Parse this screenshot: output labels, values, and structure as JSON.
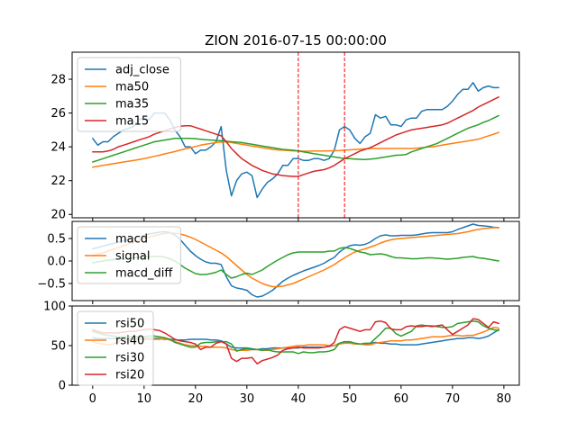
{
  "colors": {
    "blue": "#1f77b4",
    "orange": "#ff7f0e",
    "green": "#2ca02c",
    "red": "#d62728",
    "marker": "#ff0000"
  },
  "chart_data": {
    "type": "line",
    "title": "ZION 2016-07-15 00:00:00",
    "x": {
      "min": 0,
      "max": 79,
      "xlim": [
        -4,
        83
      ],
      "ticks": [
        0,
        10,
        20,
        30,
        40,
        50,
        60,
        70,
        80
      ]
    },
    "vertical_markers": [
      40,
      49
    ],
    "legend_position": "upper left",
    "panels": [
      {
        "id": "price",
        "ylim": [
          19.8,
          29.6
        ],
        "yticks": [
          20,
          22,
          24,
          26,
          28
        ],
        "series": [
          {
            "name": "adj_close",
            "color": "blue",
            "values": [
              24.5,
              24.1,
              24.3,
              24.3,
              24.6,
              24.8,
              25.0,
              25.1,
              25.2,
              25.6,
              25.7,
              25.6,
              26.0,
              26.0,
              26.0,
              25.6,
              25.0,
              24.6,
              24.0,
              24.0,
              23.6,
              23.8,
              23.8,
              24.0,
              24.3,
              25.2,
              22.6,
              21.1,
              22.0,
              22.4,
              22.5,
              22.3,
              21.0,
              21.5,
              21.9,
              22.1,
              22.4,
              22.9,
              22.9,
              23.3,
              23.3,
              23.2,
              23.2,
              23.3,
              23.3,
              23.2,
              23.3,
              23.8,
              25.0,
              25.2,
              25.0,
              24.5,
              24.2,
              24.6,
              24.8,
              25.9,
              25.7,
              25.8,
              25.3,
              25.3,
              25.2,
              25.6,
              25.7,
              25.7,
              26.1,
              26.2,
              26.2,
              26.2,
              26.2,
              26.4,
              26.7,
              27.1,
              27.4,
              27.4,
              27.8,
              27.3,
              27.5,
              27.6,
              27.5,
              27.5
            ]
          },
          {
            "name": "ma50",
            "color": "orange",
            "values": [
              22.8,
              22.85,
              22.9,
              22.95,
              23.0,
              23.05,
              23.1,
              23.15,
              23.2,
              23.25,
              23.3,
              23.37,
              23.44,
              23.5,
              23.58,
              23.65,
              23.72,
              23.8,
              23.88,
              23.95,
              24.02,
              24.1,
              24.15,
              24.2,
              24.25,
              24.28,
              24.3,
              24.25,
              24.2,
              24.15,
              24.1,
              24.05,
              24.0,
              23.95,
              23.9,
              23.85,
              23.82,
              23.8,
              23.78,
              23.76,
              23.75,
              23.74,
              23.74,
              23.75,
              23.75,
              23.75,
              23.76,
              23.77,
              23.78,
              23.8,
              23.82,
              23.84,
              23.86,
              23.88,
              23.9,
              23.9,
              23.9,
              23.9,
              23.9,
              23.9,
              23.9,
              23.9,
              23.9,
              23.92,
              23.95,
              23.98,
              24.0,
              24.05,
              24.1,
              24.15,
              24.2,
              24.25,
              24.3,
              24.35,
              24.4,
              24.45,
              24.55,
              24.65,
              24.75,
              24.85
            ]
          },
          {
            "name": "ma35",
            "color": "green",
            "values": [
              23.1,
              23.2,
              23.3,
              23.4,
              23.5,
              23.6,
              23.7,
              23.8,
              23.9,
              24.0,
              24.1,
              24.2,
              24.3,
              24.35,
              24.4,
              24.45,
              24.5,
              24.5,
              24.5,
              24.5,
              24.48,
              24.45,
              24.42,
              24.4,
              24.38,
              24.36,
              24.33,
              24.3,
              24.28,
              24.25,
              24.2,
              24.15,
              24.1,
              24.05,
              24.0,
              23.95,
              23.9,
              23.85,
              23.82,
              23.8,
              23.75,
              23.7,
              23.65,
              23.6,
              23.55,
              23.5,
              23.45,
              23.4,
              23.35,
              23.3,
              23.3,
              23.28,
              23.26,
              23.25,
              23.27,
              23.3,
              23.35,
              23.4,
              23.45,
              23.5,
              23.52,
              23.55,
              23.7,
              23.8,
              23.9,
              24.0,
              24.1,
              24.2,
              24.35,
              24.5,
              24.65,
              24.8,
              24.95,
              25.1,
              25.2,
              25.3,
              25.45,
              25.55,
              25.7,
              25.85
            ]
          },
          {
            "name": "ma15",
            "color": "red",
            "values": [
              23.7,
              23.7,
              23.7,
              23.75,
              23.85,
              24.0,
              24.1,
              24.2,
              24.3,
              24.4,
              24.5,
              24.6,
              24.75,
              24.85,
              24.95,
              25.05,
              25.15,
              25.22,
              25.25,
              25.25,
              25.15,
              25.05,
              24.95,
              24.85,
              24.75,
              24.65,
              24.3,
              23.9,
              23.6,
              23.3,
              23.1,
              22.9,
              22.75,
              22.6,
              22.5,
              22.4,
              22.35,
              22.3,
              22.27,
              22.25,
              22.25,
              22.35,
              22.45,
              22.55,
              22.6,
              22.65,
              22.75,
              22.9,
              23.1,
              23.3,
              23.45,
              23.6,
              23.75,
              23.85,
              23.95,
              24.1,
              24.25,
              24.4,
              24.55,
              24.7,
              24.8,
              24.9,
              25.0,
              25.05,
              25.1,
              25.15,
              25.2,
              25.25,
              25.3,
              25.4,
              25.55,
              25.7,
              25.85,
              26.0,
              26.15,
              26.35,
              26.5,
              26.65,
              26.8,
              26.95
            ]
          }
        ]
      },
      {
        "id": "macd",
        "ylim": [
          -0.88,
          0.88
        ],
        "yticks": [
          -0.5,
          0.0,
          0.5
        ],
        "ytick_labels": [
          "−0.5",
          "0.0",
          "0.5"
        ],
        "series": [
          {
            "name": "macd",
            "color": "blue",
            "values": [
              0.27,
              0.3,
              0.33,
              0.36,
              0.39,
              0.42,
              0.45,
              0.48,
              0.51,
              0.54,
              0.57,
              0.6,
              0.62,
              0.64,
              0.65,
              0.63,
              0.58,
              0.48,
              0.35,
              0.22,
              0.12,
              0.04,
              -0.02,
              -0.05,
              -0.05,
              -0.08,
              -0.35,
              -0.55,
              -0.6,
              -0.62,
              -0.65,
              -0.75,
              -0.8,
              -0.78,
              -0.72,
              -0.65,
              -0.55,
              -0.45,
              -0.38,
              -0.32,
              -0.27,
              -0.22,
              -0.18,
              -0.14,
              -0.1,
              -0.05,
              0.02,
              0.08,
              0.2,
              0.28,
              0.34,
              0.36,
              0.35,
              0.37,
              0.42,
              0.5,
              0.56,
              0.58,
              0.56,
              0.56,
              0.57,
              0.57,
              0.57,
              0.58,
              0.6,
              0.62,
              0.63,
              0.63,
              0.63,
              0.63,
              0.65,
              0.7,
              0.74,
              0.78,
              0.82,
              0.79,
              0.78,
              0.77,
              0.75,
              0.74
            ]
          },
          {
            "name": "signal",
            "color": "orange",
            "values": [
              0.12,
              0.15,
              0.18,
              0.22,
              0.26,
              0.3,
              0.34,
              0.38,
              0.42,
              0.46,
              0.5,
              0.53,
              0.56,
              0.59,
              0.61,
              0.62,
              0.62,
              0.6,
              0.57,
              0.53,
              0.48,
              0.42,
              0.36,
              0.3,
              0.24,
              0.18,
              0.1,
              0.0,
              -0.1,
              -0.2,
              -0.3,
              -0.38,
              -0.44,
              -0.5,
              -0.54,
              -0.57,
              -0.57,
              -0.56,
              -0.53,
              -0.5,
              -0.45,
              -0.4,
              -0.35,
              -0.3,
              -0.25,
              -0.2,
              -0.14,
              -0.08,
              0.0,
              0.07,
              0.14,
              0.2,
              0.24,
              0.27,
              0.31,
              0.35,
              0.4,
              0.44,
              0.47,
              0.49,
              0.5,
              0.51,
              0.52,
              0.53,
              0.54,
              0.55,
              0.56,
              0.57,
              0.58,
              0.59,
              0.6,
              0.61,
              0.63,
              0.65,
              0.68,
              0.7,
              0.72,
              0.73,
              0.74,
              0.74
            ]
          },
          {
            "name": "macd_diff",
            "color": "green",
            "values": [
              -0.04,
              -0.02,
              0.0,
              0.02,
              0.03,
              0.04,
              0.05,
              0.06,
              0.07,
              0.08,
              0.09,
              0.1,
              0.1,
              0.1,
              0.09,
              0.05,
              0.0,
              -0.08,
              -0.16,
              -0.22,
              -0.28,
              -0.3,
              -0.3,
              -0.28,
              -0.25,
              -0.2,
              -0.3,
              -0.38,
              -0.35,
              -0.3,
              -0.27,
              -0.3,
              -0.25,
              -0.2,
              -0.12,
              -0.05,
              0.02,
              0.08,
              0.14,
              0.18,
              0.2,
              0.2,
              0.2,
              0.2,
              0.2,
              0.2,
              0.22,
              0.22,
              0.28,
              0.3,
              0.28,
              0.24,
              0.2,
              0.18,
              0.14,
              0.15,
              0.16,
              0.14,
              0.1,
              0.07,
              0.07,
              0.06,
              0.05,
              0.05,
              0.06,
              0.07,
              0.07,
              0.06,
              0.05,
              0.04,
              0.05,
              0.06,
              0.08,
              0.09,
              0.1,
              0.07,
              0.06,
              0.04,
              0.02,
              0.0
            ]
          }
        ]
      },
      {
        "id": "rsi",
        "ylim": [
          0,
          100
        ],
        "yticks": [
          0,
          50,
          100
        ],
        "series": [
          {
            "name": "rsi50",
            "color": "blue",
            "values": [
              60,
              59,
              59,
              59,
              59,
              59,
              59,
              59,
              59,
              59,
              59,
              59,
              59,
              59,
              58,
              58,
              57,
              57,
              57,
              58,
              58,
              58,
              58,
              57,
              57,
              56,
              52,
              48,
              47,
              47,
              47,
              46,
              45,
              46,
              46,
              47,
              47,
              47,
              47,
              47,
              47,
              48,
              48,
              48,
              48,
              48,
              49,
              50,
              53,
              54,
              54,
              53,
              52,
              52,
              53,
              54,
              53,
              53,
              52,
              52,
              51,
              51,
              51,
              51,
              52,
              53,
              54,
              55,
              56,
              57,
              58,
              59,
              59,
              60,
              60,
              59,
              60,
              62,
              66,
              70
            ]
          },
          {
            "name": "rsi40",
            "color": "orange",
            "values": [
              55,
              53,
              52,
              51,
              52,
              55,
              57,
              58,
              57,
              58,
              58,
              58,
              58,
              58,
              59,
              57,
              55,
              53,
              51,
              50,
              50,
              49,
              49,
              48,
              48,
              48,
              47,
              45,
              44,
              44,
              44,
              45,
              45,
              44,
              44,
              45,
              46,
              47,
              48,
              49,
              50,
              50,
              51,
              51,
              51,
              51,
              50,
              50,
              52,
              53,
              53,
              52,
              52,
              51,
              51,
              53,
              54,
              55,
              56,
              56,
              56,
              57,
              57,
              58,
              59,
              60,
              61,
              61,
              61,
              62,
              63,
              63,
              62,
              63,
              63,
              65,
              67,
              70,
              73,
              72
            ]
          },
          {
            "name": "rsi30",
            "color": "green",
            "values": [
              68,
              66,
              64,
              63,
              62,
              61,
              61,
              61,
              61,
              61,
              61,
              62,
              62,
              61,
              60,
              58,
              54,
              52,
              50,
              48,
              48,
              53,
              54,
              54,
              55,
              55,
              55,
              52,
              43,
              45,
              46,
              45,
              45,
              44,
              45,
              43,
              42,
              42,
              42,
              42,
              40,
              42,
              41,
              41,
              42,
              42,
              43,
              45,
              53,
              55,
              55,
              53,
              52,
              53,
              53,
              59,
              65,
              72,
              72,
              65,
              62,
              65,
              68,
              75,
              76,
              75,
              75,
              74,
              73,
              73,
              74,
              78,
              79,
              80,
              81,
              80,
              75,
              72,
              70,
              69
            ]
          },
          {
            "name": "rsi20",
            "color": "red",
            "values": [
              70,
              68,
              66,
              66,
              66,
              66,
              67,
              68,
              68,
              69,
              70,
              71,
              70,
              69,
              66,
              62,
              58,
              56,
              55,
              54,
              52,
              45,
              48,
              48,
              53,
              55,
              52,
              34,
              30,
              34,
              34,
              35,
              27,
              31,
              33,
              35,
              38,
              44,
              46,
              47,
              48,
              47,
              47,
              47,
              47,
              48,
              49,
              54,
              70,
              74,
              72,
              70,
              68,
              70,
              70,
              80,
              81,
              79,
              71,
              70,
              70,
              74,
              75,
              74,
              74,
              75,
              74,
              75,
              76,
              70,
              64,
              68,
              72,
              76,
              84,
              83,
              78,
              73,
              80,
              78
            ]
          }
        ]
      }
    ]
  }
}
